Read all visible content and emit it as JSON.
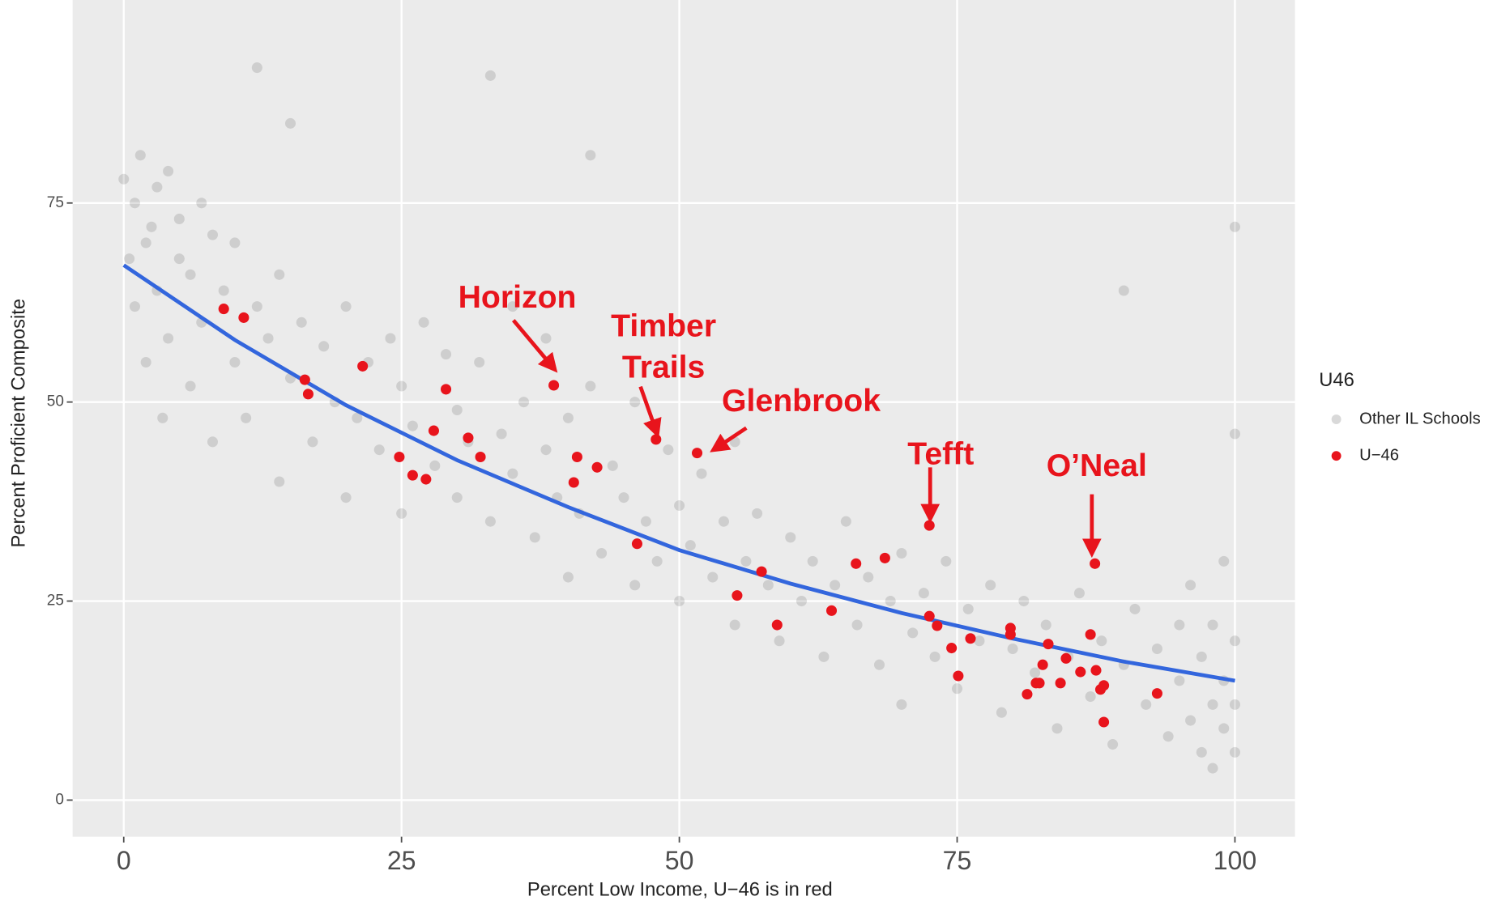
{
  "chart_data": {
    "type": "scatter",
    "xlabel": "Percent Low Income, U−46 is in red",
    "ylabel": "Percent Proficient Composite",
    "xlim": [
      -4.6,
      105.4
    ],
    "ylim": [
      -4.6,
      100.5
    ],
    "xticks": [
      0,
      25,
      50,
      75,
      100
    ],
    "yticks": [
      0,
      25,
      50,
      75
    ],
    "grid": true,
    "legend_title": "U46",
    "legend_position": "right",
    "series": [
      {
        "name": "Other IL Schools",
        "color": "#000000",
        "opacity": 0.12,
        "x": [
          0,
          0.5,
          1,
          1,
          1.5,
          2,
          2,
          2.5,
          3,
          3,
          3.5,
          4,
          4,
          5,
          5,
          6,
          6,
          7,
          7,
          8,
          8,
          9,
          10,
          10,
          11,
          12,
          12,
          13,
          14,
          14,
          15,
          15,
          16,
          17,
          18,
          19,
          20,
          20,
          21,
          22,
          23,
          24,
          25,
          25,
          26,
          27,
          28,
          29,
          30,
          30,
          31,
          32,
          33,
          33,
          34,
          35,
          35,
          36,
          37,
          38,
          38,
          39,
          40,
          40,
          41,
          42,
          42,
          43,
          44,
          45,
          46,
          46,
          47,
          48,
          49,
          50,
          50,
          51,
          52,
          53,
          54,
          55,
          55,
          56,
          57,
          58,
          59,
          60,
          61,
          62,
          63,
          64,
          65,
          66,
          67,
          68,
          69,
          70,
          70,
          71,
          72,
          73,
          74,
          75,
          76,
          77,
          78,
          79,
          80,
          81,
          82,
          83,
          84,
          85,
          86,
          87,
          88,
          89,
          90,
          91,
          92,
          93,
          94,
          95,
          95,
          96,
          96,
          97,
          97,
          98,
          98,
          98,
          99,
          99,
          99,
          100,
          100,
          100,
          100,
          100,
          90
        ],
        "values": [
          78,
          68,
          75,
          62,
          81,
          70,
          55,
          72,
          77,
          64,
          48,
          79,
          58,
          68,
          73,
          66,
          52,
          60,
          75,
          71,
          45,
          64,
          55,
          70,
          48,
          62,
          92,
          58,
          66,
          40,
          53,
          85,
          60,
          45,
          57,
          50,
          62,
          38,
          48,
          55,
          44,
          58,
          52,
          36,
          47,
          60,
          42,
          56,
          38,
          49,
          45,
          55,
          35,
          91,
          46,
          41,
          62,
          50,
          33,
          44,
          58,
          38,
          48,
          28,
          36,
          52,
          81,
          31,
          42,
          38,
          27,
          50,
          35,
          30,
          44,
          25,
          37,
          32,
          41,
          28,
          35,
          22,
          45,
          30,
          36,
          27,
          20,
          33,
          25,
          30,
          18,
          27,
          35,
          22,
          28,
          17,
          25,
          31,
          12,
          21,
          26,
          18,
          30,
          14,
          24,
          20,
          27,
          11,
          19,
          25,
          16,
          22,
          9,
          18,
          26,
          13,
          20,
          7,
          17,
          24,
          12,
          19,
          8,
          15,
          22,
          10,
          27,
          6,
          18,
          12,
          4,
          22,
          9,
          15,
          30,
          6,
          12,
          20,
          46,
          72,
          64
        ]
      },
      {
        "name": "U−46",
        "color": "#e8141c",
        "opacity": 1,
        "x": [
          9.0,
          10.8,
          16.3,
          16.6,
          21.5,
          24.8,
          26.0,
          27.2,
          27.9,
          29.0,
          31.0,
          32.1,
          38.7,
          40.5,
          40.8,
          42.6,
          46.2,
          47.9,
          51.6,
          55.2,
          57.4,
          58.8,
          63.7,
          65.9,
          68.5,
          72.5,
          72.5,
          73.2,
          74.5,
          75.1,
          76.2,
          79.8,
          79.8,
          81.3,
          82.1,
          82.4,
          82.7,
          83.2,
          84.3,
          84.8,
          86.1,
          87.0,
          87.4,
          87.5,
          87.9,
          88.2,
          88.2,
          93.0
        ],
        "values": [
          61.7,
          60.6,
          52.8,
          51.0,
          54.5,
          43.1,
          40.8,
          40.3,
          46.4,
          51.6,
          45.5,
          43.1,
          52.1,
          39.9,
          43.1,
          41.8,
          32.2,
          45.3,
          43.6,
          25.7,
          28.7,
          22.0,
          23.8,
          29.7,
          30.4,
          34.5,
          23.1,
          21.9,
          19.1,
          15.6,
          20.3,
          21.6,
          20.8,
          13.3,
          14.7,
          14.7,
          17.0,
          19.6,
          14.7,
          17.8,
          16.1,
          20.8,
          29.7,
          16.3,
          13.9,
          14.4,
          9.8,
          13.4
        ]
      }
    ],
    "fit_line": {
      "color": "#3366dd",
      "x": [
        0,
        10,
        20,
        30,
        40,
        50,
        60,
        70,
        80,
        90,
        100
      ],
      "values": [
        67.2,
        57.8,
        49.6,
        42.7,
        36.8,
        31.4,
        27.2,
        23.5,
        20.3,
        17.4,
        15.0
      ]
    },
    "annotations": [
      {
        "lines": [
          "Horizon"
        ]
      },
      {
        "lines": [
          "Timber",
          "Trails"
        ]
      },
      {
        "lines": [
          "Glenbrook"
        ]
      },
      {
        "lines": [
          "Tefft"
        ]
      },
      {
        "lines": [
          "O’Neal"
        ]
      }
    ]
  }
}
